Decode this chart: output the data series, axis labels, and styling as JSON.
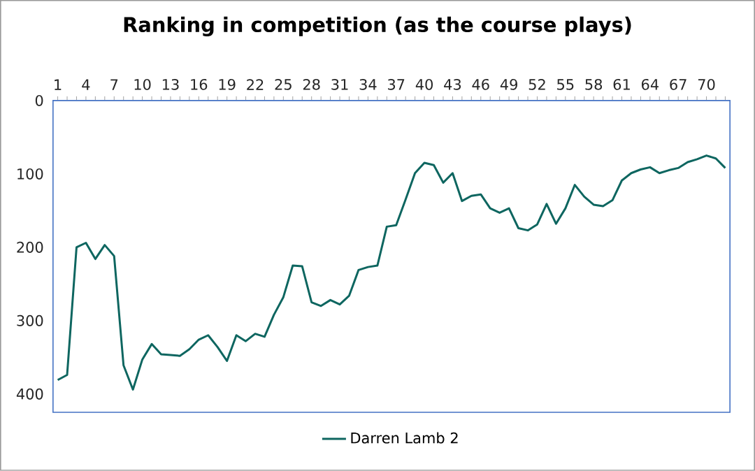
{
  "chart_data": {
    "type": "line",
    "title": "Ranking in competition (as the course plays)",
    "categories": [
      "1",
      null,
      null,
      "4",
      null,
      null,
      "7",
      null,
      null,
      "10",
      null,
      null,
      "13",
      null,
      null,
      "16",
      null,
      null,
      "19",
      null,
      null,
      "22",
      null,
      null,
      "25",
      null,
      null,
      "28",
      null,
      null,
      "31",
      null,
      null,
      "34",
      null,
      null,
      "37",
      null,
      null,
      "40",
      null,
      null,
      "43",
      null,
      null,
      "46",
      null,
      null,
      "49",
      null,
      null,
      "52",
      null,
      null,
      "55",
      null,
      null,
      "58",
      null,
      null,
      "61",
      null,
      null,
      "64",
      null,
      null,
      "67",
      null,
      null,
      "70",
      null,
      null
    ],
    "series": [
      {
        "name": "Darren Lamb 2",
        "color": "#0e6660",
        "values": [
          381,
          374,
          200,
          194,
          216,
          197,
          212,
          361,
          394,
          353,
          332,
          346,
          347,
          348,
          339,
          326,
          320,
          336,
          355,
          320,
          328,
          318,
          322,
          292,
          268,
          225,
          226,
          275,
          280,
          272,
          278,
          266,
          231,
          227,
          225,
          172,
          170,
          135,
          99,
          85,
          88,
          112,
          99,
          137,
          130,
          128,
          147,
          153,
          147,
          174,
          177,
          169,
          141,
          168,
          147,
          115,
          131,
          142,
          144,
          136,
          109,
          99,
          94,
          91,
          99,
          95,
          92,
          84,
          80,
          75,
          79,
          92
        ]
      }
    ],
    "ylim": [
      425,
      0
    ],
    "yticks": [
      0,
      100,
      200,
      300,
      400
    ],
    "grid": false,
    "legend": "bottom",
    "marker": "none",
    "line_style": "solid"
  }
}
